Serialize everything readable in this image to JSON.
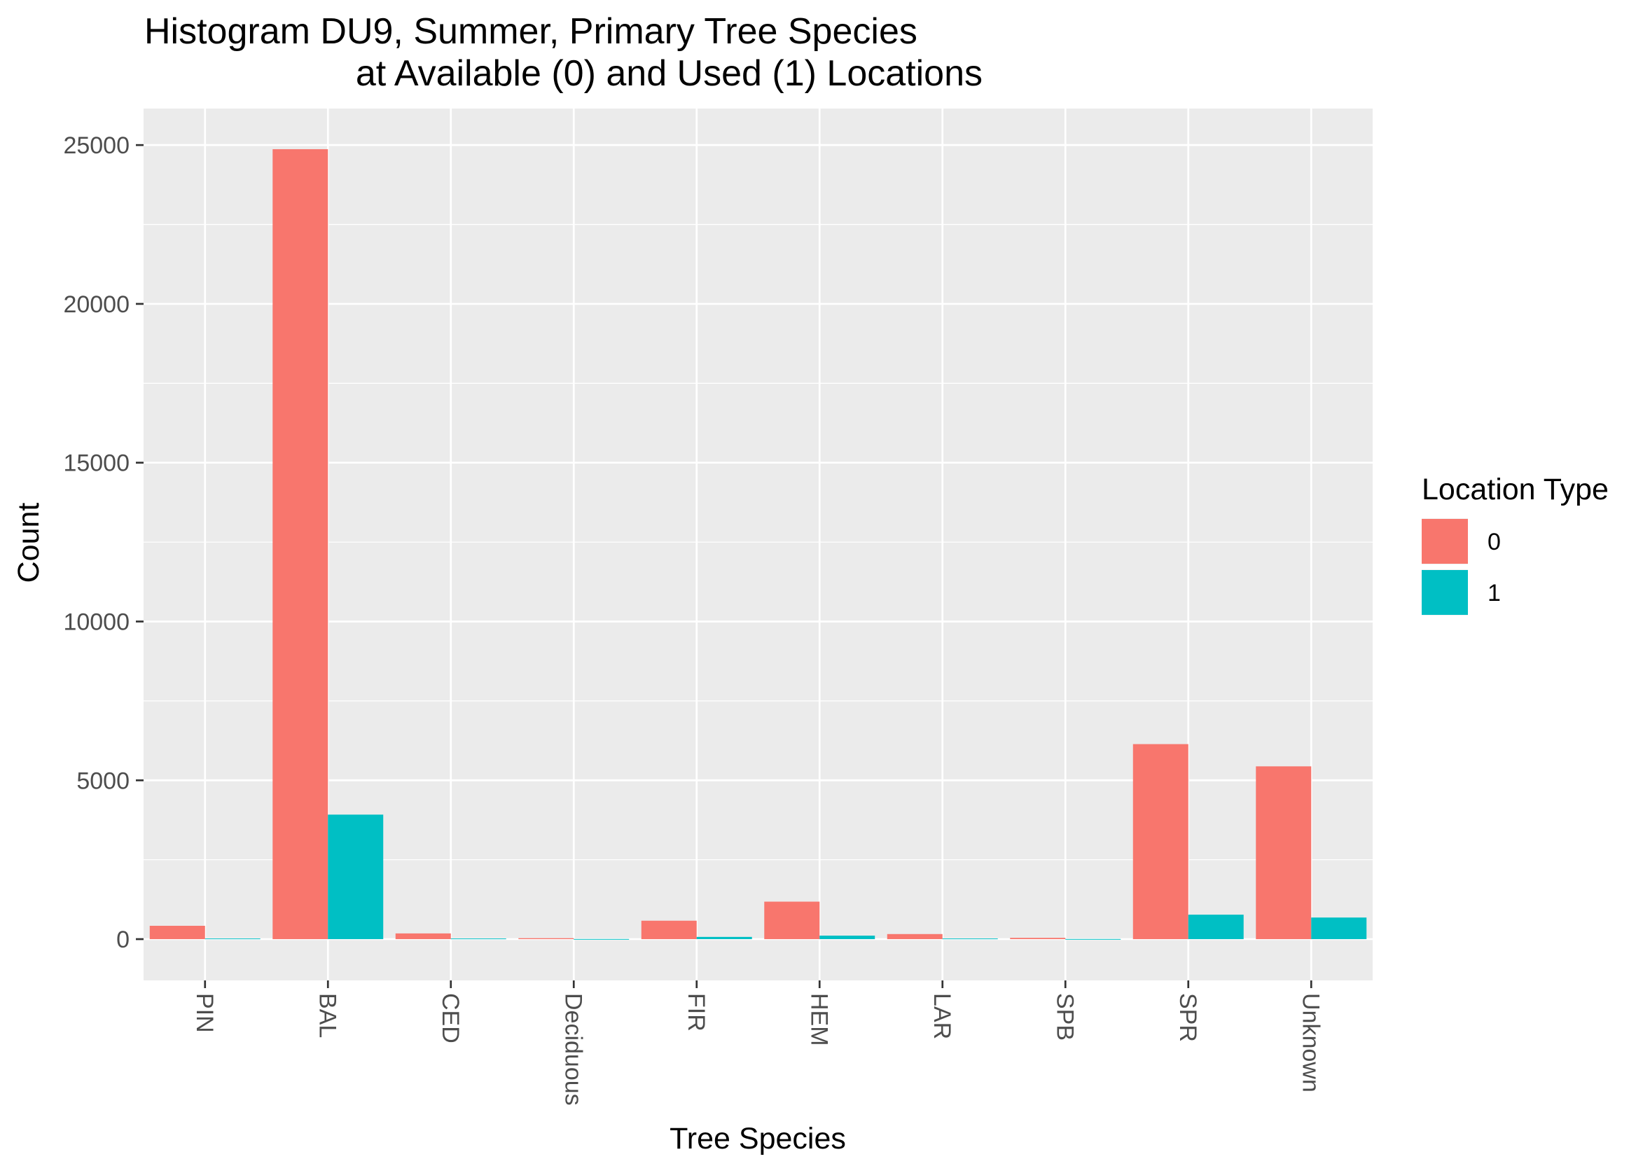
{
  "chart_data": {
    "type": "bar",
    "title_line1": "Histogram DU9, Summer, Primary Tree Species",
    "title_line2": "at Available (0) and Used (1) Locations",
    "xlabel": "Tree Species",
    "ylabel": "Count",
    "categories": [
      "PIN",
      "BAL",
      "CED",
      "Deciduous",
      "FIR",
      "HEM",
      "LAR",
      "SPB",
      "SPR",
      "Unknown"
    ],
    "series": [
      {
        "name": "0",
        "color": "#F8766D",
        "values": [
          420,
          24870,
          180,
          30,
          580,
          1180,
          160,
          40,
          6140,
          5440
        ]
      },
      {
        "name": "1",
        "color": "#00BFC4",
        "values": [
          20,
          3920,
          20,
          5,
          70,
          110,
          20,
          5,
          770,
          680
        ]
      }
    ],
    "ylim": [
      -1300,
      26150
    ],
    "yticks": [
      0,
      5000,
      10000,
      15000,
      20000,
      25000
    ],
    "ytick_labels": [
      "0",
      "5000",
      "10000",
      "15000",
      "20000",
      "25000"
    ],
    "grid": true,
    "panel_color": "#EBEBEB",
    "legend": {
      "title": "Location Type",
      "position": "right",
      "entries": [
        "0",
        "1"
      ]
    }
  }
}
